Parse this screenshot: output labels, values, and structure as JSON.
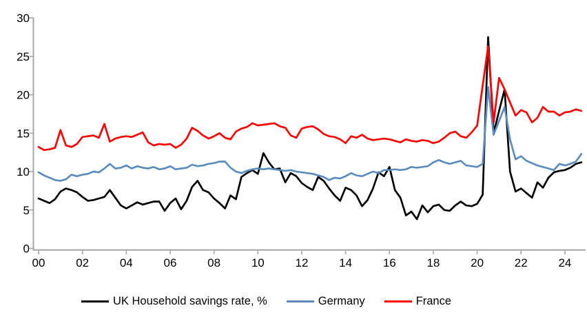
{
  "chart_data": {
    "type": "line",
    "title": "",
    "xlabel": "",
    "ylabel": "",
    "grid": false,
    "legend_position": "bottom",
    "x_ticks": [
      "00",
      "02",
      "04",
      "06",
      "08",
      "10",
      "12",
      "14",
      "16",
      "18",
      "20",
      "22",
      "24"
    ],
    "y_ticks": [
      0,
      5,
      10,
      15,
      20,
      25,
      30
    ],
    "ylim": [
      0,
      30
    ],
    "xlim_years_since_2000": [
      0,
      25
    ],
    "x_start_year": 2000,
    "frequency": "quarterly",
    "axis_color": "#a6a6a6",
    "tick_label_color": "#000000",
    "series": [
      {
        "name": "UK Household savings rate, %",
        "color": "#000000",
        "values": [
          6.5,
          6.2,
          5.9,
          6.4,
          7.4,
          7.8,
          7.6,
          7.3,
          6.7,
          6.2,
          6.3,
          6.5,
          6.7,
          7.6,
          6.6,
          5.6,
          5.2,
          5.6,
          6.0,
          5.7,
          5.9,
          6.1,
          6.1,
          4.9,
          5.9,
          6.5,
          5.1,
          6.2,
          8.0,
          8.8,
          7.6,
          7.3,
          6.5,
          5.9,
          5.2,
          6.9,
          6.4,
          9.3,
          9.8,
          10.2,
          9.7,
          12.4,
          11.2,
          10.3,
          10.4,
          8.6,
          9.8,
          9.4,
          8.5,
          8.0,
          7.6,
          9.3,
          8.8,
          7.8,
          6.9,
          6.2,
          7.9,
          7.6,
          6.9,
          5.5,
          6.3,
          7.8,
          9.9,
          9.4,
          10.6,
          7.6,
          6.6,
          4.3,
          4.8,
          3.8,
          5.6,
          4.7,
          5.5,
          5.7,
          5.0,
          4.9,
          5.6,
          6.1,
          5.6,
          5.5,
          5.8,
          7.0,
          27.5,
          15.0,
          17.9,
          20.7,
          10.0,
          7.4,
          7.8,
          7.2,
          6.6,
          8.6,
          7.9,
          9.2,
          9.9,
          10.1,
          10.2,
          10.5,
          11.0,
          11.2
        ]
      },
      {
        "name": "Germany",
        "color": "#5b8cbd",
        "values": [
          9.9,
          9.5,
          9.2,
          8.9,
          8.8,
          9.0,
          9.6,
          9.4,
          9.6,
          9.7,
          10.0,
          9.9,
          10.4,
          11.0,
          10.4,
          10.5,
          10.8,
          10.4,
          10.7,
          10.5,
          10.4,
          10.6,
          10.3,
          10.4,
          10.7,
          10.3,
          10.4,
          10.5,
          10.9,
          10.7,
          10.8,
          11.0,
          11.1,
          11.3,
          11.3,
          10.5,
          10.0,
          9.8,
          10.1,
          10.3,
          10.4,
          10.3,
          10.4,
          10.3,
          10.2,
          10.1,
          10.2,
          10.0,
          9.9,
          9.8,
          9.7,
          9.5,
          9.3,
          8.9,
          9.2,
          9.1,
          9.4,
          9.8,
          9.5,
          9.4,
          9.7,
          10.0,
          9.8,
          10.2,
          10.2,
          10.3,
          10.2,
          10.3,
          10.6,
          10.5,
          10.6,
          10.7,
          11.2,
          11.5,
          11.2,
          11.0,
          11.2,
          11.4,
          10.8,
          10.7,
          10.6,
          11.0,
          21.0,
          14.8,
          16.6,
          18.4,
          14.2,
          11.6,
          12.0,
          11.4,
          11.1,
          10.8,
          10.6,
          10.4,
          10.2,
          11.0,
          10.8,
          11.0,
          11.3,
          12.3
        ]
      },
      {
        "name": "France",
        "color": "#ff0000",
        "values": [
          13.2,
          12.8,
          12.9,
          13.1,
          15.4,
          13.4,
          13.2,
          13.6,
          14.5,
          14.6,
          14.7,
          14.4,
          16.2,
          13.9,
          14.3,
          14.5,
          14.6,
          14.5,
          14.8,
          15.1,
          13.8,
          13.4,
          13.6,
          13.5,
          13.6,
          13.1,
          13.5,
          14.3,
          15.7,
          15.3,
          14.7,
          14.3,
          14.6,
          15.0,
          14.4,
          14.2,
          15.2,
          15.6,
          15.8,
          16.3,
          16.0,
          16.1,
          16.2,
          16.3,
          15.9,
          15.7,
          14.7,
          14.4,
          15.6,
          15.8,
          15.9,
          15.5,
          14.9,
          14.6,
          14.5,
          14.2,
          13.7,
          14.6,
          14.4,
          14.8,
          14.3,
          14.1,
          14.2,
          14.3,
          14.2,
          14.0,
          13.8,
          14.2,
          14.0,
          13.9,
          14.1,
          14.0,
          13.7,
          13.9,
          14.4,
          15.0,
          15.2,
          14.6,
          14.4,
          15.1,
          16.0,
          21.2,
          26.3,
          16.4,
          22.2,
          20.7,
          19.0,
          17.3,
          18.0,
          17.7,
          16.4,
          17.0,
          18.4,
          17.8,
          17.8,
          17.3,
          17.7,
          17.8,
          18.1,
          17.9
        ]
      }
    ]
  },
  "legend": {
    "items": [
      {
        "label": "UK Household savings rate, %"
      },
      {
        "label": "Germany"
      },
      {
        "label": "France"
      }
    ]
  }
}
